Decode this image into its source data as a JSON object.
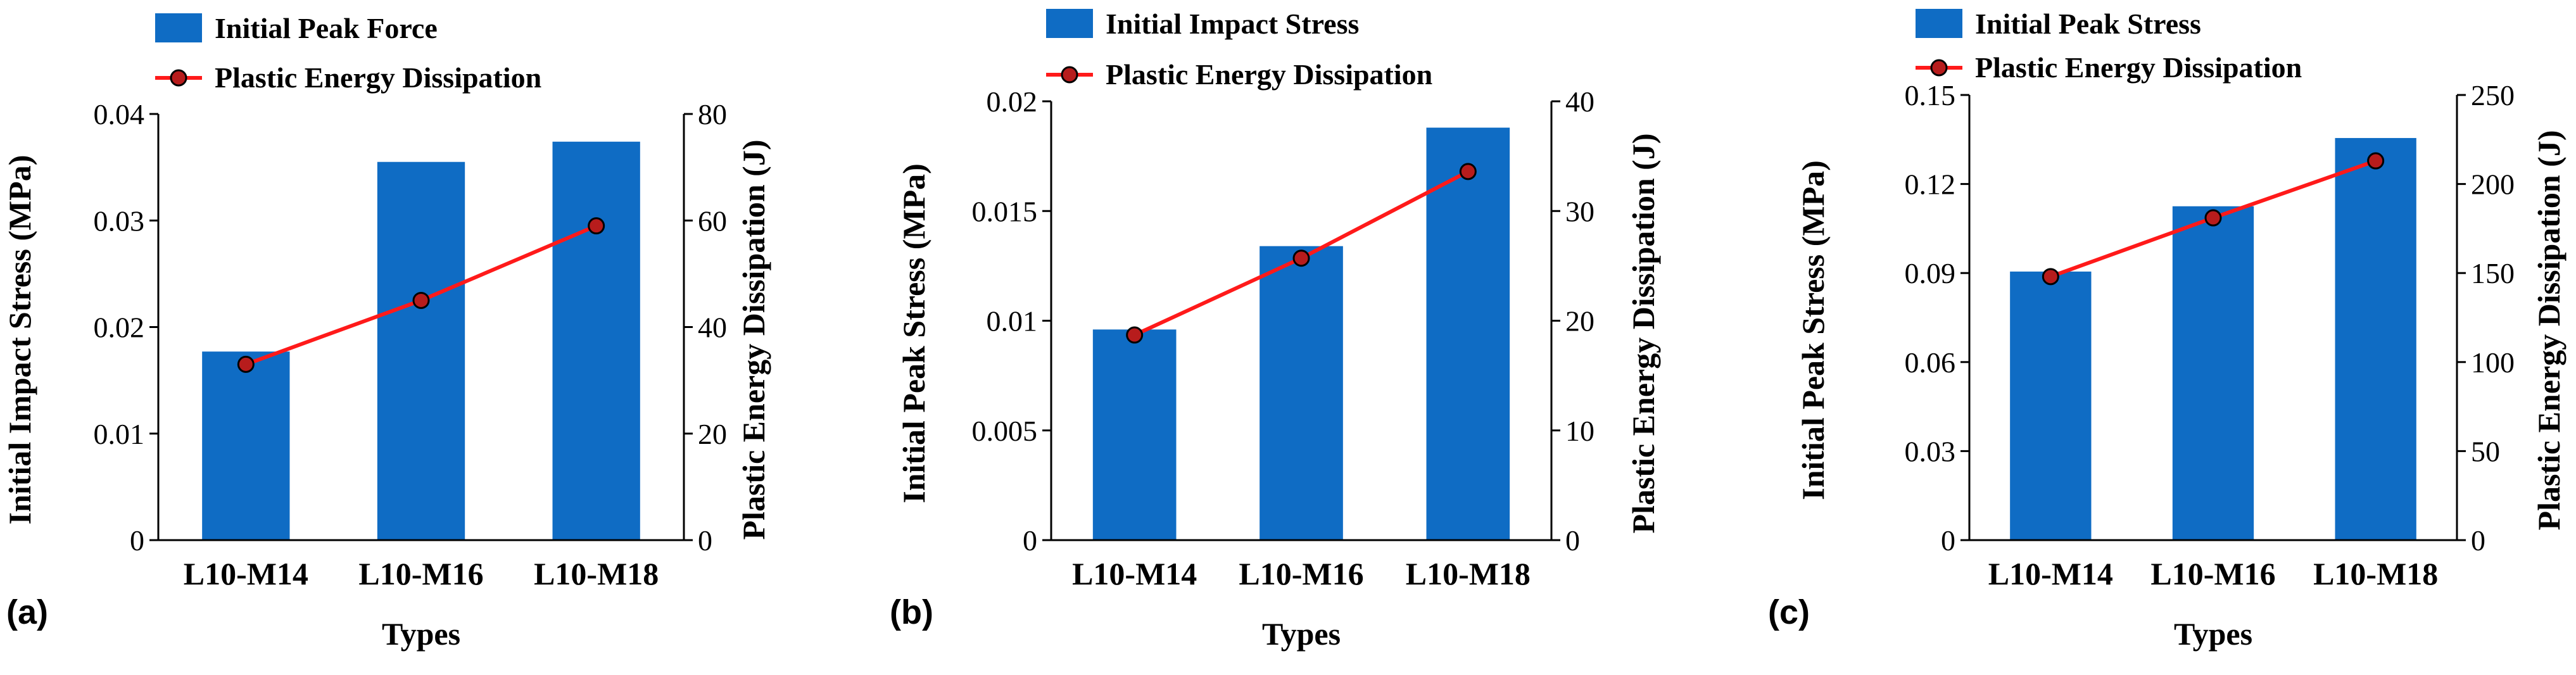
{
  "colors": {
    "bar": "#0f6cc4",
    "line": "#ff1a1a",
    "marker_fill": "#b71c1c",
    "axis": "#000000"
  },
  "chart_data": [
    {
      "type": "bar",
      "panel_label": "(a)",
      "categories": [
        "L10-M14",
        "L10-M16",
        "L10-M18"
      ],
      "xlabel": "Types",
      "ylabel": "Initial Impact Stress (MPa)",
      "y2label": "Plastic Energy Dissipation (J)",
      "ylim": [
        0,
        0.04
      ],
      "y2lim": [
        0,
        80
      ],
      "yticks": [
        "0",
        "0.01",
        "0.02",
        "0.03",
        "0.04"
      ],
      "y2ticks": [
        "0",
        "20",
        "40",
        "60",
        "80"
      ],
      "series": [
        {
          "name": "Initial Peak Force",
          "kind": "bar",
          "axis": "left",
          "values": [
            0.0177,
            0.0355,
            0.0374
          ]
        },
        {
          "name": "Plastic Energy Dissipation",
          "kind": "line",
          "axis": "right",
          "values": [
            33,
            45,
            59
          ]
        }
      ]
    },
    {
      "type": "bar",
      "panel_label": "(b)",
      "categories": [
        "L10-M14",
        "L10-M16",
        "L10-M18"
      ],
      "xlabel": "Types",
      "ylabel": "Initial Peak Stress (MPa)",
      "y2label": "Plastic Energy Dissipation (J)",
      "ylim": [
        0,
        0.02
      ],
      "y2lim": [
        0,
        40
      ],
      "yticks": [
        "0",
        "0.005",
        "0.01",
        "0.015",
        "0.02"
      ],
      "y2ticks": [
        "0",
        "10",
        "20",
        "30",
        "40"
      ],
      "series": [
        {
          "name": "Initial Impact Stress",
          "kind": "bar",
          "axis": "left",
          "values": [
            0.0096,
            0.0134,
            0.0188
          ]
        },
        {
          "name": "Plastic Energy Dissipation",
          "kind": "line",
          "axis": "right",
          "values": [
            18.7,
            25.7,
            33.6
          ]
        }
      ]
    },
    {
      "type": "bar",
      "panel_label": "(c)",
      "categories": [
        "L10-M14",
        "L10-M16",
        "L10-M18"
      ],
      "xlabel": "Types",
      "ylabel": "Initial Peak Stress (MPa)",
      "y2label": "Plastic Energy Dissipation (J)",
      "ylim": [
        0,
        0.15
      ],
      "y2lim": [
        0,
        250
      ],
      "yticks": [
        "0",
        "0.03",
        "0.06",
        "0.09",
        "0.12",
        "0.15"
      ],
      "y2ticks": [
        "0",
        "50",
        "100",
        "150",
        "200",
        "250"
      ],
      "series": [
        {
          "name": "Initial Peak Stress",
          "kind": "bar",
          "axis": "left",
          "values": [
            0.0905,
            0.1125,
            0.1355
          ]
        },
        {
          "name": "Plastic Energy Dissipation",
          "kind": "line",
          "axis": "right",
          "values": [
            148,
            181,
            213
          ]
        }
      ]
    }
  ]
}
